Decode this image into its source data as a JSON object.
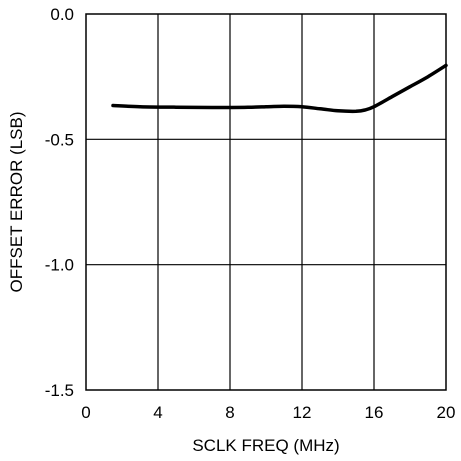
{
  "colors": {
    "line": "#000000",
    "grid": "#000000",
    "background": "#ffffff"
  },
  "chart_data": {
    "type": "line",
    "title": "",
    "xlabel": "SCLK FREQ (MHz)",
    "ylabel": "OFFSET ERROR (LSB)",
    "xlim": [
      0,
      20
    ],
    "ylim": [
      -1.5,
      0.0
    ],
    "xticks": [
      0,
      4,
      8,
      12,
      16,
      20
    ],
    "xtick_labels": [
      "0",
      "4",
      "8",
      "12",
      "16",
      "20"
    ],
    "yticks": [
      0.0,
      -0.5,
      -1.0,
      -1.5
    ],
    "ytick_labels": [
      "0.0",
      "-0.5",
      "-1.0",
      "-1.5"
    ],
    "grid": true,
    "series": [
      {
        "x": [
          1.5,
          3,
          5,
          7,
          9,
          10,
          11,
          12,
          13,
          14,
          15,
          15.5,
          16,
          17,
          18,
          19,
          20
        ],
        "y": [
          -0.365,
          -0.37,
          -0.372,
          -0.373,
          -0.372,
          -0.37,
          -0.368,
          -0.37,
          -0.378,
          -0.386,
          -0.388,
          -0.383,
          -0.37,
          -0.33,
          -0.29,
          -0.25,
          -0.205
        ]
      }
    ]
  }
}
